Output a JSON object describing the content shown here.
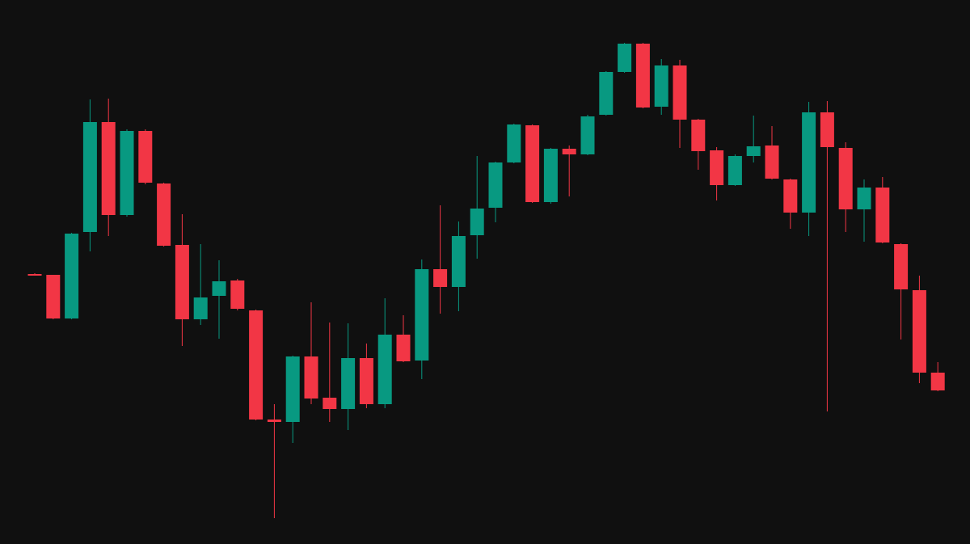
{
  "chart_data": {
    "type": "candlestick",
    "up_color": "#089981",
    "down_color": "#f23645",
    "ylim": [
      0,
      673
    ],
    "open": [
      334,
      333,
      279,
      386,
      522,
      407,
      511,
      446,
      370,
      278,
      307,
      326,
      289,
      154,
      151,
      232,
      181,
      167,
      230,
      173,
      259,
      227,
      340,
      318,
      382,
      416,
      472,
      518,
      423,
      489,
      482,
      531,
      584,
      619,
      541,
      592,
      525,
      487,
      444,
      480,
      493,
      451,
      410,
      534,
      490,
      414,
      441,
      371,
      314,
      212
    ],
    "high": [
      335,
      333,
      385,
      550,
      551,
      513,
      513,
      447,
      408,
      371,
      351,
      328,
      290,
      173,
      233,
      299,
      274,
      273,
      248,
      304,
      283,
      352,
      419,
      399,
      480,
      473,
      520,
      519,
      490,
      493,
      531,
      585,
      620,
      620,
      600,
      599,
      526,
      491,
      482,
      530,
      517,
      452,
      547,
      548,
      497,
      451,
      454,
      372,
      332,
      225
    ],
    "low": [
      332,
      278,
      278,
      362,
      381,
      405,
      445,
      368,
      245,
      271,
      254,
      289,
      153,
      32,
      125,
      173,
      151,
      141,
      168,
      168,
      225,
      204,
      285,
      288,
      353,
      398,
      471,
      422,
      421,
      430,
      481,
      530,
      583,
      539,
      531,
      490,
      463,
      425,
      443,
      472,
      451,
      390,
      381,
      164,
      386,
      374,
      372,
      253,
      199,
      189
    ],
    "close": [
      333,
      279,
      384,
      522,
      407,
      511,
      447,
      369,
      278,
      305,
      325,
      291,
      154,
      151,
      232,
      180,
      167,
      230,
      173,
      259,
      226,
      340,
      318,
      381,
      415,
      472,
      519,
      423,
      489,
      482,
      529,
      584,
      619,
      540,
      592,
      525,
      486,
      444,
      480,
      492,
      452,
      410,
      534,
      491,
      414,
      441,
      373,
      315,
      212,
      190
    ]
  }
}
